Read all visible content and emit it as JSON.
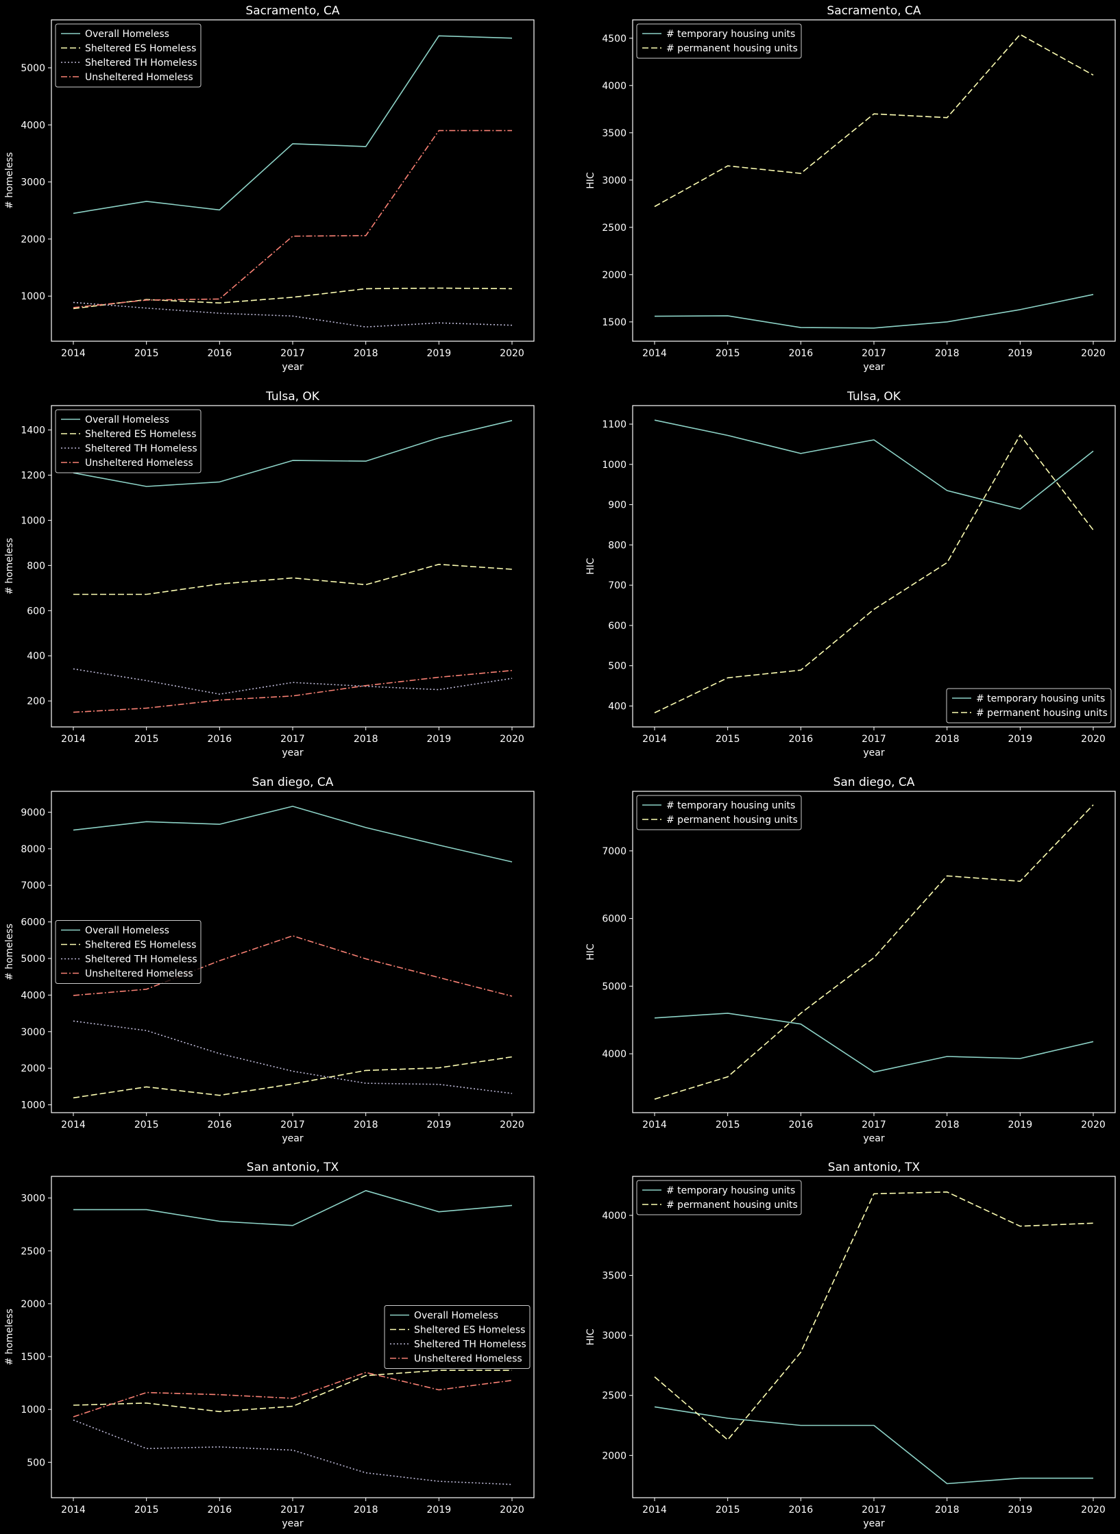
{
  "figure": {
    "background": "#000000",
    "text_color": "#ffffff",
    "axes_color": "#ffffff"
  },
  "styles": {
    "Overall Homeless": {
      "color": "#8dd3c7",
      "dash": "solid"
    },
    "Sheltered ES Homeless": {
      "color": "#feffb3",
      "dash": "dashed"
    },
    "Sheltered TH Homeless": {
      "color": "#bfbbd9",
      "dash": "dotted"
    },
    "Unsheltered Homeless": {
      "color": "#fa8174",
      "dash": "dashdot"
    },
    "# temporary housing units": {
      "color": "#8dd3c7",
      "dash": "solid"
    },
    "# permanent housing units": {
      "color": "#feffb3",
      "dash": "dashed"
    }
  },
  "chart_data": [
    {
      "type": "line",
      "title": "Sacramento, CA",
      "xlabel": "year",
      "ylabel": "# homeless",
      "x": [
        2014,
        2015,
        2016,
        2017,
        2018,
        2019,
        2020
      ],
      "ylim": [
        210,
        5840
      ],
      "yticks": [
        1000,
        2000,
        3000,
        4000,
        5000
      ],
      "legend": "upper-left",
      "grid": false,
      "series": [
        {
          "name": "Overall Homeless",
          "values": [
            2450,
            2660,
            2510,
            3670,
            3620,
            5560,
            5520
          ]
        },
        {
          "name": "Sheltered ES Homeless",
          "values": [
            780,
            940,
            880,
            980,
            1130,
            1140,
            1130
          ]
        },
        {
          "name": "Sheltered TH Homeless",
          "values": [
            890,
            790,
            700,
            650,
            460,
            530,
            490
          ]
        },
        {
          "name": "Unsheltered Homeless",
          "values": [
            800,
            930,
            950,
            2050,
            2060,
            3900,
            3900
          ]
        }
      ]
    },
    {
      "type": "line",
      "title": "Sacramento, CA",
      "xlabel": "year",
      "ylabel": "HIC",
      "x": [
        2014,
        2015,
        2016,
        2017,
        2018,
        2019,
        2020
      ],
      "ylim": [
        1296,
        4694
      ],
      "yticks": [
        1500,
        2000,
        2500,
        3000,
        3500,
        4000,
        4500
      ],
      "legend": "upper-left",
      "grid": false,
      "series": [
        {
          "name": "# temporary housing units",
          "values": [
            1560,
            1565,
            1440,
            1435,
            1500,
            1630,
            1790
          ]
        },
        {
          "name": "# permanent housing units",
          "values": [
            2720,
            3150,
            3070,
            3700,
            3660,
            4540,
            4110
          ]
        }
      ]
    },
    {
      "type": "line",
      "title": "Tulsa, OK",
      "xlabel": "year",
      "ylabel": "# homeless",
      "x": [
        2014,
        2015,
        2016,
        2017,
        2018,
        2019,
        2020
      ],
      "ylim": [
        85,
        1508
      ],
      "yticks": [
        200,
        400,
        600,
        800,
        1000,
        1200,
        1400
      ],
      "legend": "upper-left",
      "grid": false,
      "series": [
        {
          "name": "Overall Homeless",
          "values": [
            1210,
            1150,
            1170,
            1265,
            1262,
            1365,
            1442
          ]
        },
        {
          "name": "Sheltered ES Homeless",
          "values": [
            672,
            672,
            718,
            745,
            715,
            805,
            783
          ]
        },
        {
          "name": "Sheltered TH Homeless",
          "values": [
            342,
            290,
            230,
            282,
            265,
            250,
            300
          ]
        },
        {
          "name": "Unsheltered Homeless",
          "values": [
            150,
            168,
            204,
            222,
            268,
            305,
            335
          ]
        }
      ]
    },
    {
      "type": "line",
      "title": "Tulsa, OK",
      "xlabel": "year",
      "ylabel": "HIC",
      "x": [
        2014,
        2015,
        2016,
        2017,
        2018,
        2019,
        2020
      ],
      "ylim": [
        348,
        1146
      ],
      "yticks": [
        400,
        500,
        600,
        700,
        800,
        900,
        1000,
        1100
      ],
      "legend": "lower-right",
      "grid": false,
      "series": [
        {
          "name": "# temporary housing units",
          "values": [
            1110,
            1072,
            1027,
            1061,
            935,
            889,
            1033
          ]
        },
        {
          "name": "# permanent housing units",
          "values": [
            383,
            470,
            489,
            640,
            756,
            1073,
            837
          ]
        }
      ]
    },
    {
      "type": "line",
      "title": "San diego, CA",
      "xlabel": "year",
      "ylabel": "# homeless",
      "x": [
        2014,
        2015,
        2016,
        2017,
        2018,
        2019,
        2020
      ],
      "ylim": [
        786,
        9570
      ],
      "yticks": [
        1000,
        2000,
        3000,
        4000,
        5000,
        6000,
        7000,
        8000,
        9000
      ],
      "legend": "center-left",
      "grid": false,
      "series": [
        {
          "name": "Overall Homeless",
          "values": [
            8510,
            8740,
            8670,
            9160,
            8580,
            8100,
            7640
          ]
        },
        {
          "name": "Sheltered ES Homeless",
          "values": [
            1190,
            1490,
            1260,
            1570,
            1940,
            2010,
            2310
          ]
        },
        {
          "name": "Sheltered TH Homeless",
          "values": [
            3290,
            3030,
            2400,
            1920,
            1590,
            1560,
            1310
          ]
        },
        {
          "name": "Unsheltered Homeless",
          "values": [
            3990,
            4160,
            4940,
            5620,
            4990,
            4480,
            3970
          ]
        }
      ]
    },
    {
      "type": "line",
      "title": "San diego, CA",
      "xlabel": "year",
      "ylabel": "HIC",
      "x": [
        2014,
        2015,
        2016,
        2017,
        2018,
        2019,
        2020
      ],
      "ylim": [
        3130,
        7880
      ],
      "yticks": [
        4000,
        5000,
        6000,
        7000
      ],
      "legend": "upper-left",
      "grid": false,
      "series": [
        {
          "name": "# temporary housing units",
          "values": [
            4530,
            4600,
            4440,
            3730,
            3960,
            3930,
            4180
          ]
        },
        {
          "name": "# permanent housing units",
          "values": [
            3330,
            3660,
            4600,
            5420,
            6630,
            6550,
            7680
          ]
        }
      ]
    },
    {
      "type": "line",
      "title": "San antonio, TX",
      "xlabel": "year",
      "ylabel": "# homeless",
      "x": [
        2014,
        2015,
        2016,
        2017,
        2018,
        2019,
        2020
      ],
      "ylim": [
        165,
        3205
      ],
      "yticks": [
        500,
        1000,
        1500,
        2000,
        2500,
        3000
      ],
      "legend": "center-right",
      "grid": false,
      "series": [
        {
          "name": "Overall Homeless",
          "values": [
            2890,
            2890,
            2780,
            2740,
            3070,
            2870,
            2930
          ]
        },
        {
          "name": "Sheltered ES Homeless",
          "values": [
            1040,
            1060,
            980,
            1030,
            1320,
            1370,
            1370
          ]
        },
        {
          "name": "Sheltered TH Homeless",
          "values": [
            900,
            630,
            645,
            615,
            400,
            320,
            290
          ]
        },
        {
          "name": "Unsheltered Homeless",
          "values": [
            930,
            1160,
            1140,
            1105,
            1350,
            1185,
            1275
          ]
        }
      ]
    },
    {
      "type": "line",
      "title": "San antonio, TX",
      "xlabel": "year",
      "ylabel": "HIC",
      "x": [
        2014,
        2015,
        2016,
        2017,
        2018,
        2019,
        2020
      ],
      "ylim": [
        1648,
        4325
      ],
      "yticks": [
        2000,
        2500,
        3000,
        3500,
        4000
      ],
      "legend": "upper-left",
      "grid": false,
      "series": [
        {
          "name": "# temporary housing units",
          "values": [
            2405,
            2310,
            2250,
            2250,
            1765,
            1810,
            1810
          ]
        },
        {
          "name": "# permanent housing units",
          "values": [
            2655,
            2130,
            2860,
            4180,
            4195,
            3910,
            3935
          ]
        }
      ]
    }
  ]
}
